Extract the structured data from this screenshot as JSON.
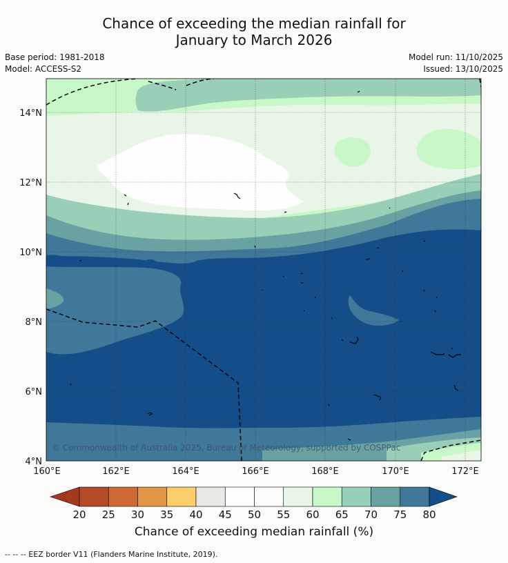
{
  "title_line1": "Chance of exceeding the median rainfall for",
  "title_line2": "January to March 2026",
  "meta": {
    "base_period": "Base period: 1981-2018",
    "model": "Model: ACCESS-S2",
    "model_run": "Model run: 11/10/2025",
    "issued": "Issued: 13/10/2025"
  },
  "map": {
    "lat_labels": [
      "14°N",
      "12°N",
      "10°N",
      "8°N",
      "6°N",
      "4°N"
    ],
    "lon_labels": [
      "160°E",
      "162°E",
      "164°E",
      "166°E",
      "168°E",
      "170°E",
      "172°E"
    ],
    "copyright": "© Commonwealth of Australia 2025, Bureau of Meteorology, supported by COSPPac"
  },
  "colorbar": {
    "ticks": [
      "20",
      "25",
      "30",
      "35",
      "40",
      "45",
      "50",
      "55",
      "60",
      "65",
      "70",
      "75",
      "80"
    ],
    "colors": [
      "#a4381f",
      "#b54c27",
      "#d06a34",
      "#e29648",
      "#fdcd6b",
      "#eae8e3",
      "#fefefe",
      "#fcfdfb",
      "#e9f5e6",
      "#c8f7c8",
      "#99cfb7",
      "#6aa2a4",
      "#40789a",
      "#134e88"
    ],
    "title": "Chance of exceeding median rainfall (%)"
  },
  "footnote": "--  --  -- EEZ border V11 (Flanders Marine Institute, 2019)."
}
